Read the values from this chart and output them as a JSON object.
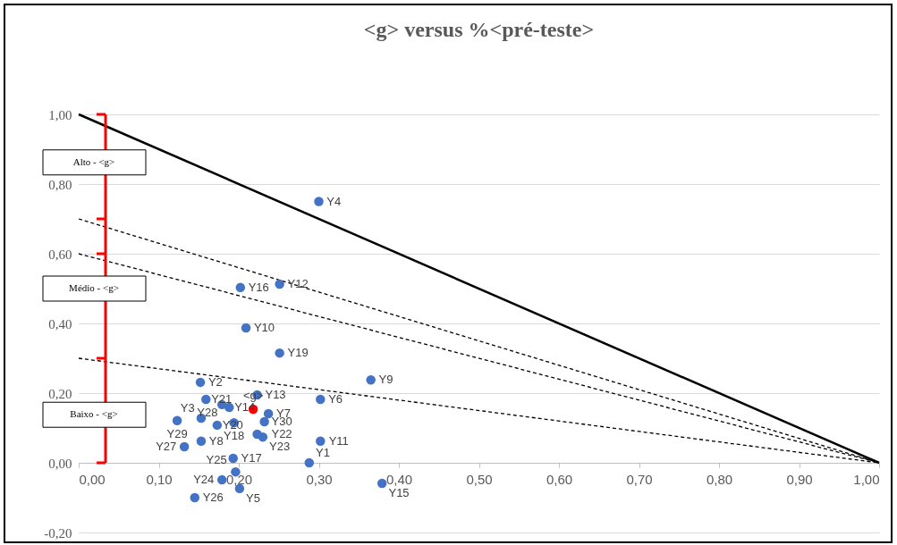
{
  "chart_data": {
    "type": "scatter",
    "title": "<g> versus %<pré-teste>",
    "xlim": [
      0,
      1
    ],
    "ylim": [
      -0.2,
      1
    ],
    "xticks": [
      {
        "value": 0,
        "label": "0,00"
      },
      {
        "value": 0.1,
        "label": "0,10"
      },
      {
        "value": 0.2,
        "label": "0,20"
      },
      {
        "value": 0.3,
        "label": "0,30"
      },
      {
        "value": 0.4,
        "label": "0,40"
      },
      {
        "value": 0.5,
        "label": "0,50"
      },
      {
        "value": 0.6,
        "label": "0,60"
      },
      {
        "value": 0.7,
        "label": "0,70"
      },
      {
        "value": 0.8,
        "label": "0,80"
      },
      {
        "value": 0.9,
        "label": "0,90"
      },
      {
        "value": 1,
        "label": "1,00"
      }
    ],
    "yticks": [
      {
        "value": -0.2,
        "label": "-0,20"
      },
      {
        "value": 0,
        "label": "0,00"
      },
      {
        "value": 0.2,
        "label": "0,20"
      },
      {
        "value": 0.4,
        "label": "0,40"
      },
      {
        "value": 0.6,
        "label": "0,60"
      },
      {
        "value": 0.8,
        "label": "0,80"
      },
      {
        "value": 1,
        "label": "1,00"
      }
    ],
    "grid": "y",
    "marker": "circle",
    "series": [
      {
        "type": "line",
        "color": "#000000",
        "line_style": "solid",
        "marker": "none",
        "x": [
          0,
          1
        ],
        "values": [
          1,
          0
        ]
      },
      {
        "type": "line",
        "color": "#000000",
        "line_style": "dashed",
        "marker": "none",
        "x": [
          0,
          1
        ],
        "values": [
          0.7,
          0
        ]
      },
      {
        "type": "line",
        "color": "#000000",
        "line_style": "dashed",
        "marker": "none",
        "x": [
          0,
          1
        ],
        "values": [
          0.6,
          0
        ]
      },
      {
        "type": "line",
        "color": "#000000",
        "line_style": "dashed",
        "marker": "none",
        "x": [
          0,
          1
        ],
        "values": [
          0.3,
          0
        ]
      },
      {
        "type": "scatter",
        "color": "#4472c4",
        "x": [
          0.288,
          0.152,
          0.153,
          0.3,
          0.201,
          0.302,
          0.237,
          0.153,
          0.365,
          0.209,
          0.302,
          0.251,
          0.223,
          0.188,
          0.379,
          0.202,
          0.193,
          0.194,
          0.251,
          0.173,
          0.159,
          0.223,
          0.23,
          0.179,
          0.196,
          0.145,
          0.132,
          0.179,
          0.123,
          0.232
        ],
        "values": [
          0.0,
          0.231,
          0.128,
          0.75,
          -0.074,
          0.182,
          0.141,
          0.062,
          0.238,
          0.387,
          0.062,
          0.513,
          0.195,
          0.159,
          -0.059,
          0.503,
          0.013,
          0.115,
          0.315,
          0.108,
          0.182,
          0.082,
          0.074,
          -0.049,
          -0.026,
          -0.1,
          0.046,
          0.167,
          0.121,
          0.118
        ],
        "value_labels": [
          "Y1",
          "Y2",
          "Y3",
          "Y4",
          "Y5",
          "Y6",
          "Y7",
          "Y8",
          "Y9",
          "Y10",
          "Y11",
          "Y12",
          "Y13",
          "Y14",
          "Y15",
          "Y16",
          "Y17",
          "Y18",
          "Y19",
          "Y20",
          "Y21",
          "Y22",
          "Y23",
          "Y24",
          "Y25",
          "Y26",
          "Y27",
          "Y28",
          "Y29",
          "Y30"
        ]
      },
      {
        "type": "scatter",
        "color": "#ff0000",
        "x": [
          0.218
        ],
        "values": [
          0.154
        ],
        "value_labels": [
          "<g>"
        ]
      }
    ],
    "annotations": [
      "Alto - <g>",
      "Médio - <g>",
      "Baixo - <g>"
    ]
  }
}
